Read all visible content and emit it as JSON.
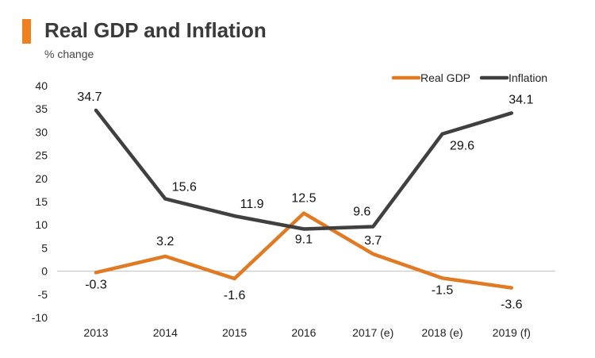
{
  "header": {
    "title": "Real GDP and Inflation",
    "subtitle": "% change"
  },
  "colors": {
    "accent": "#F07F20",
    "gdp": "#E07B24",
    "inflation": "#404040"
  },
  "chart_data": {
    "type": "line",
    "title": "Real GDP and Inflation",
    "subtitle": "% change",
    "categories": [
      "2013",
      "2014",
      "2015",
      "2016",
      "2017 (e)",
      "2018 (e)",
      "2019 (f)"
    ],
    "yticks": [
      40,
      35,
      30,
      25,
      20,
      15,
      10,
      5,
      0,
      -5,
      -10
    ],
    "ylim": [
      -10,
      40
    ],
    "legend_position": "top-right",
    "series": [
      {
        "name": "Real GDP",
        "values": [
          -0.3,
          3.2,
          -1.6,
          12.5,
          3.7,
          -1.5,
          -3.6
        ],
        "labels": [
          "-0.3",
          "3.2",
          "-1.6",
          "12.5",
          "3.7",
          "-1.5",
          "-3.6"
        ]
      },
      {
        "name": "Inflation",
        "values": [
          34.7,
          15.6,
          11.9,
          9.1,
          9.6,
          29.6,
          34.1
        ],
        "labels": [
          "34.7",
          "15.6",
          "11.9",
          "9.1",
          "9.6",
          "29.6",
          "34.1"
        ]
      }
    ]
  }
}
